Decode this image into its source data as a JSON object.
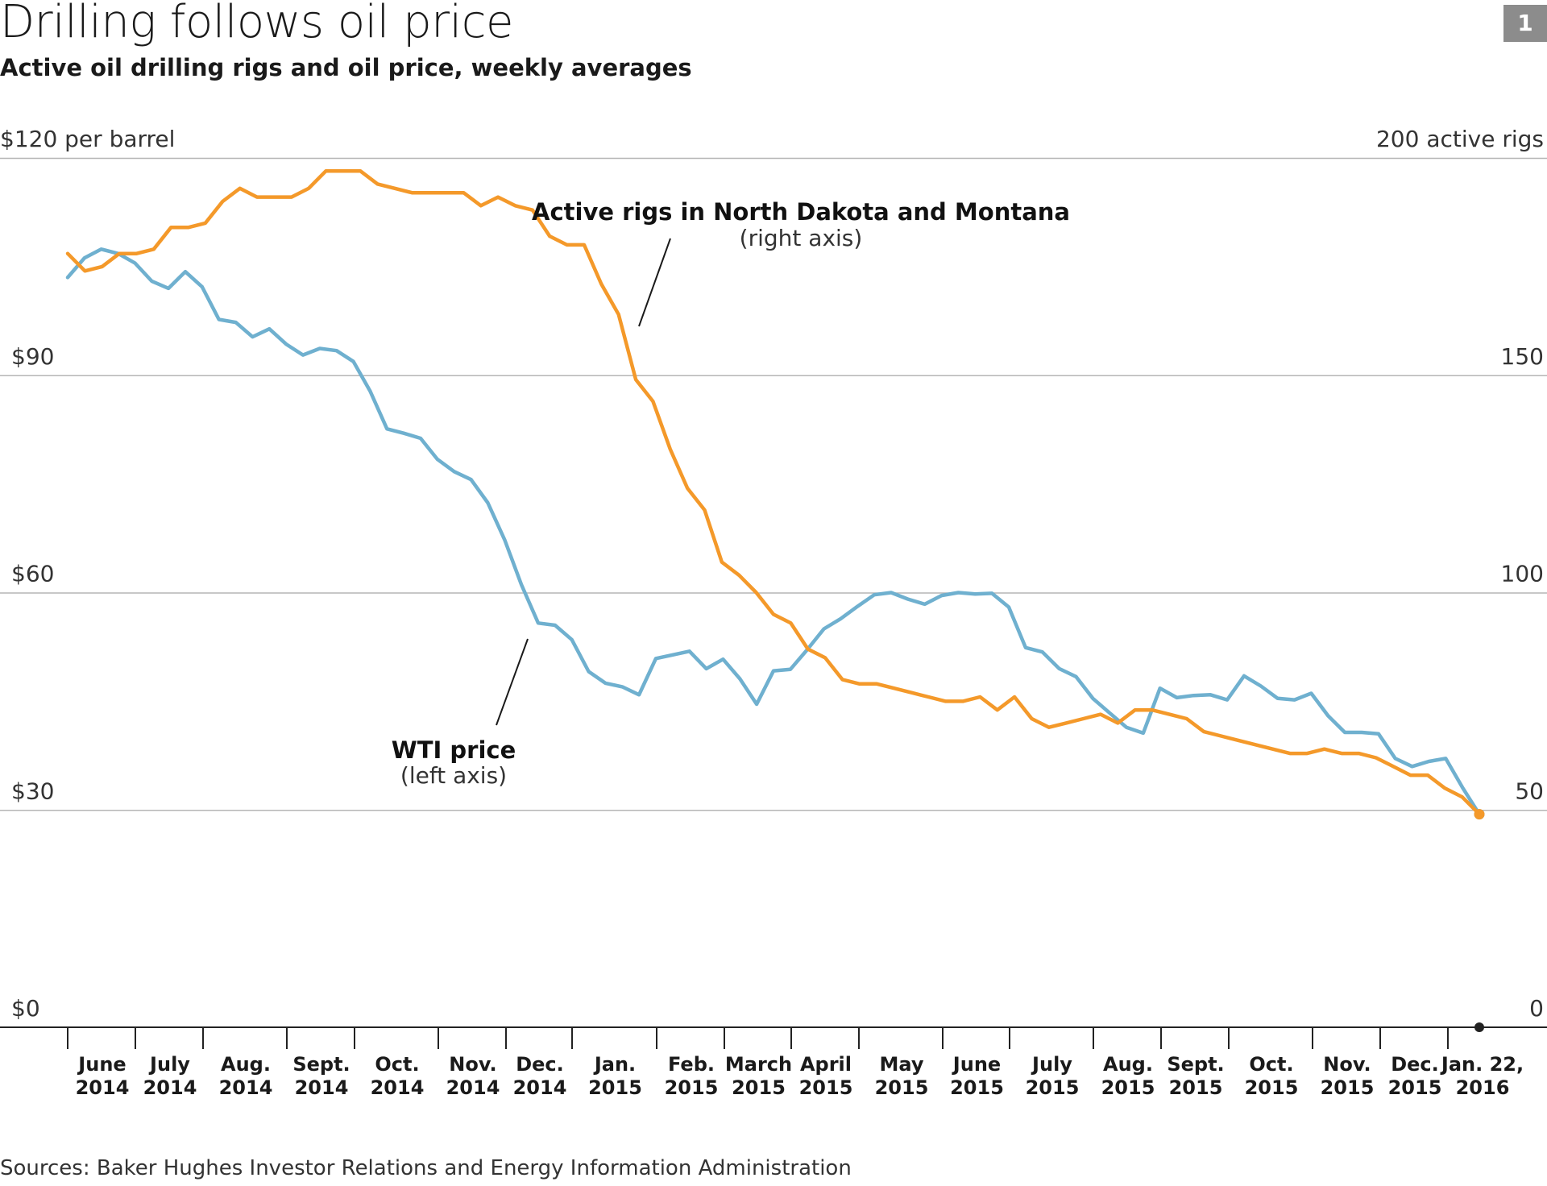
{
  "header": {
    "title": "Drilling follows oil price",
    "subtitle": "Active oil drilling rigs and oil price, weekly averages",
    "badge": "1"
  },
  "footer": {
    "source": "Sources: Baker Hughes Investor Relations and Energy Information Administration"
  },
  "chart_data": {
    "type": "line",
    "title": "Drilling follows oil price",
    "left_axis": {
      "label": "$120 per barrel",
      "min": 0,
      "max": 120,
      "ticks": [
        {
          "value": 120,
          "label": "$120 per barrel"
        },
        {
          "value": 90,
          "label": "$90"
        },
        {
          "value": 60,
          "label": "$60"
        },
        {
          "value": 30,
          "label": "$30"
        },
        {
          "value": 0,
          "label": "$0"
        }
      ]
    },
    "right_axis": {
      "label": "200 active rigs",
      "min": 0,
      "max": 200,
      "ticks": [
        {
          "value": 200,
          "label": "200 active rigs"
        },
        {
          "value": 150,
          "label": "150"
        },
        {
          "value": 100,
          "label": "100"
        },
        {
          "value": 50,
          "label": "50"
        },
        {
          "value": 0,
          "label": "0"
        }
      ]
    },
    "x_ticks": [
      {
        "line1": "June",
        "line2": "2014"
      },
      {
        "line1": "July",
        "line2": "2014"
      },
      {
        "line1": "Aug.",
        "line2": "2014"
      },
      {
        "line1": "Sept.",
        "line2": "2014"
      },
      {
        "line1": "Oct.",
        "line2": "2014"
      },
      {
        "line1": "Nov.",
        "line2": "2014"
      },
      {
        "line1": "Dec.",
        "line2": "2014"
      },
      {
        "line1": "Jan.",
        "line2": "2015"
      },
      {
        "line1": "Feb.",
        "line2": "2015"
      },
      {
        "line1": "March",
        "line2": "2015"
      },
      {
        "line1": "April",
        "line2": "2015"
      },
      {
        "line1": "May",
        "line2": "2015"
      },
      {
        "line1": "June",
        "line2": "2015"
      },
      {
        "line1": "July",
        "line2": "2015"
      },
      {
        "line1": "Aug.",
        "line2": "2015"
      },
      {
        "line1": "Sept.",
        "line2": "2015"
      },
      {
        "line1": "Oct.",
        "line2": "2015"
      },
      {
        "line1": "Nov.",
        "line2": "2015"
      },
      {
        "line1": "Dec.",
        "line2": "2015"
      },
      {
        "line1": "Jan. 22,",
        "line2": "2016"
      }
    ],
    "series": [
      {
        "name": "WTI price",
        "axis": "left",
        "unit": "$ per barrel",
        "color": "#6fb0cf",
        "annotation": {
          "label": "WTI price",
          "sublabel": "(left axis)"
        },
        "values": [
          103.5,
          106.2,
          107.4,
          106.8,
          105.5,
          103,
          102,
          104.3,
          102.2,
          97.7,
          97.3,
          95.3,
          96.4,
          94.3,
          92.8,
          93.7,
          93.4,
          91.9,
          87.8,
          82.6,
          82,
          81.3,
          78.4,
          76.7,
          75.6,
          72.4,
          67.3,
          61.1,
          55.8,
          55.5,
          53.5,
          49.1,
          47.5,
          47,
          45.9,
          50.9,
          51.4,
          51.9,
          49.5,
          50.8,
          48.1,
          44.6,
          49.2,
          49.4,
          52.1,
          55,
          56.4,
          58.1,
          59.7,
          60,
          59.1,
          58.4,
          59.6,
          60,
          59.8,
          59.9,
          58,
          52.4,
          51.8,
          49.5,
          48.4,
          45.4,
          43.4,
          41.4,
          40.6,
          46.8,
          45.5,
          45.8,
          45.9,
          45.2,
          48.5,
          47.1,
          45.4,
          45.2,
          46.1,
          43,
          40.7,
          40.7,
          40.5,
          37.1,
          36,
          36.7,
          37.1,
          33.1,
          29.4
        ]
      },
      {
        "name": "Active rigs in North Dakota and Montana",
        "axis": "right",
        "unit": "active rigs",
        "color": "#f4992a",
        "annotation": {
          "label": "Active rigs in North Dakota and Montana",
          "sublabel": "(right axis)"
        },
        "values": [
          178,
          174,
          175,
          178,
          178,
          179,
          184,
          184,
          185,
          190,
          193,
          191,
          191,
          191,
          193,
          197,
          197,
          197,
          194,
          193,
          192,
          192,
          192,
          192,
          189,
          191,
          189,
          188,
          182,
          180,
          180,
          171,
          164,
          149,
          144,
          133,
          124,
          119,
          107,
          104,
          100,
          95,
          93,
          87,
          85,
          80,
          79,
          79,
          78,
          77,
          76,
          75,
          75,
          76,
          73,
          76,
          71,
          69,
          70,
          71,
          72,
          70,
          73,
          73,
          72,
          71,
          68,
          67,
          66,
          65,
          64,
          63,
          63,
          64,
          63,
          63,
          62,
          60,
          58,
          58,
          55,
          53,
          49
        ]
      }
    ],
    "annotations": [
      {
        "text": "Active rigs in North Dakota and Montana",
        "subtext": "(right axis)"
      },
      {
        "text": "WTI price",
        "subtext": "(left axis)"
      }
    ]
  }
}
